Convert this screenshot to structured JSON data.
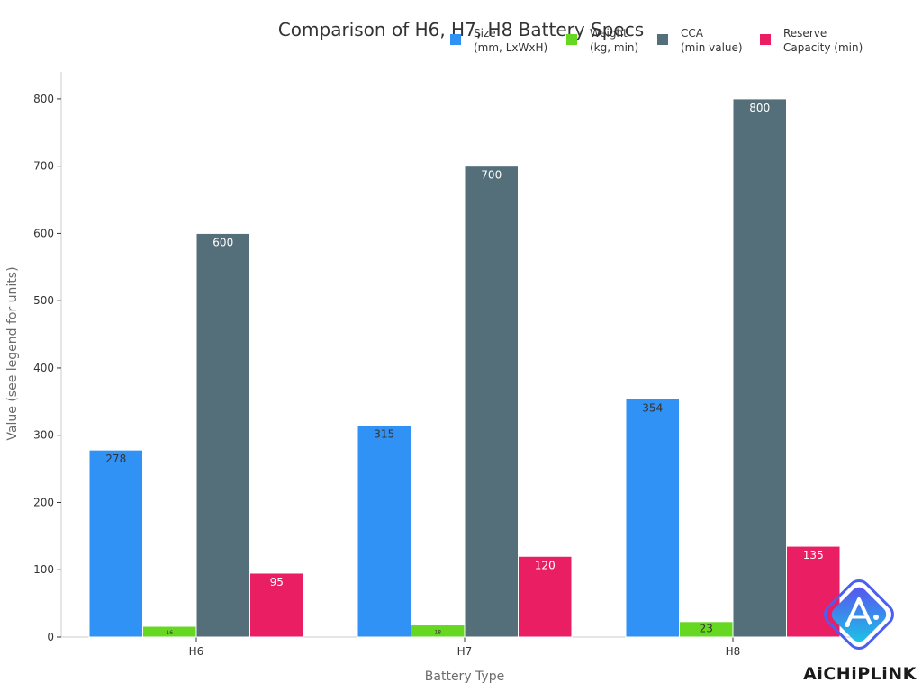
{
  "chart_data": {
    "type": "bar",
    "title": "Comparison of H6, H7, H8 Battery Specs",
    "xlabel": "Battery Type",
    "ylabel": "Value (see legend for units)",
    "categories": [
      "H6",
      "H7",
      "H8"
    ],
    "ylim": [
      0,
      840
    ],
    "yticks": [
      0,
      100,
      200,
      300,
      400,
      500,
      600,
      700,
      800
    ],
    "grid": false,
    "legend_position": "top-right",
    "series": [
      {
        "name": "Size\n(mm, LxWxH)",
        "color": "#3192f5",
        "values": [
          278,
          315,
          354
        ],
        "labels": [
          "278",
          "315",
          "354"
        ]
      },
      {
        "name": "Weight\n(kg, min)",
        "color": "#66d822",
        "values": [
          16,
          18,
          23
        ],
        "labels": [
          "16",
          "18",
          "23"
        ]
      },
      {
        "name": "CCA\n(min value)",
        "color": "#546e7a",
        "values": [
          600,
          700,
          800
        ],
        "labels": [
          "600",
          "700",
          "800"
        ]
      },
      {
        "name": "Reserve\nCapacity (min)",
        "color": "#e91e63",
        "values": [
          95,
          120,
          135
        ],
        "labels": [
          "95",
          "120",
          "135"
        ]
      }
    ]
  },
  "logo": {
    "text": "AiCHiPLiNK",
    "icon": "aichiplink-logo-icon"
  }
}
